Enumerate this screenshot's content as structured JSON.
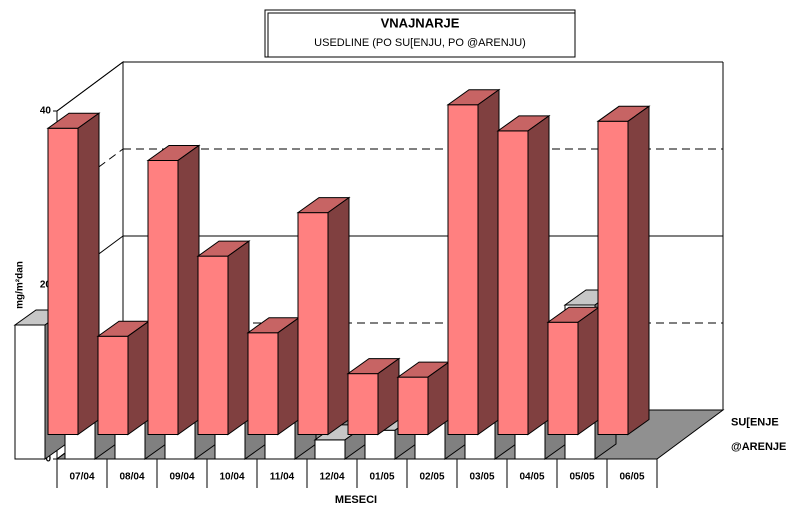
{
  "chart_data": {
    "type": "bar3d",
    "title": "VNAJNARJE",
    "subtitle": "USEDLINE (PO SU[ENJU, PO @ARENJU)",
    "x_label": "MESECI",
    "y_label": "mg/m²dan",
    "categories": [
      "07/04",
      "08/04",
      "09/04",
      "10/04",
      "11/04",
      "12/04",
      "01/05",
      "02/05",
      "03/05",
      "04/05",
      "05/05",
      "06/05"
    ],
    "series": [
      {
        "name": "SU[ENJE",
        "color": "#ff8080",
        "values": [
          35.2,
          11.3,
          31.5,
          20.5,
          11.7,
          25.5,
          7,
          6.6,
          37.9,
          34.9,
          12.9,
          36
        ]
      },
      {
        "name": "@ARENJE",
        "color": "#ffffff",
        "values": [
          15.4,
          9.3,
          5.3,
          20,
          7.6,
          4.7,
          2.2,
          3.3,
          8.9,
          15.5,
          8.9,
          17.7
        ]
      }
    ],
    "ylim": [
      0,
      40
    ],
    "yticks": [
      0,
      20,
      40
    ],
    "grid": true
  }
}
